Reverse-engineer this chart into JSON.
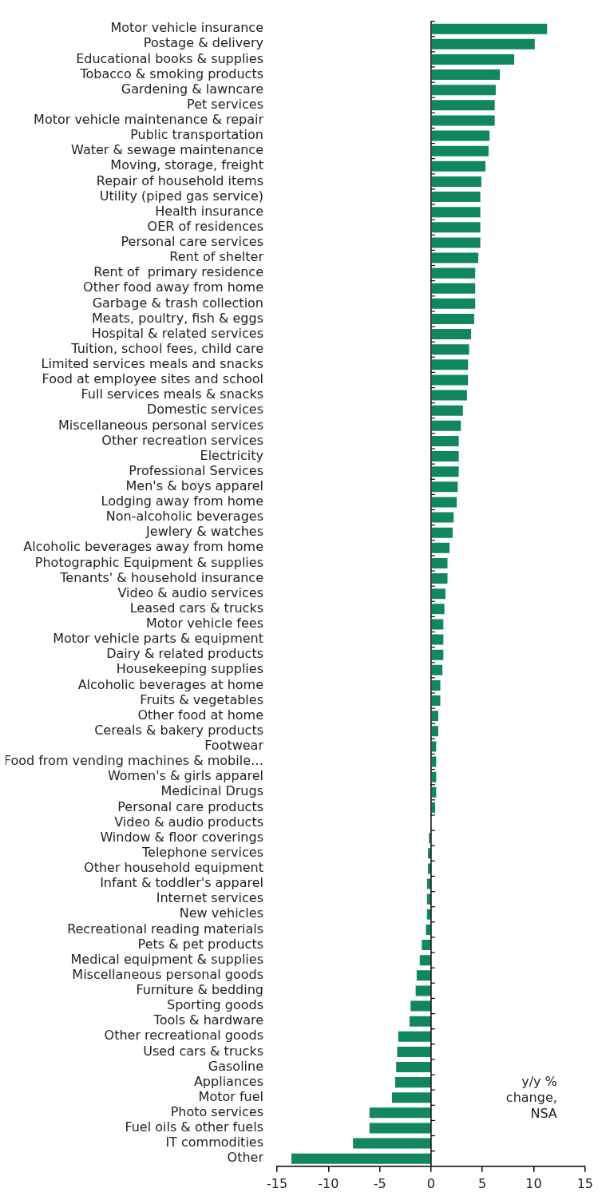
{
  "chart_data": {
    "type": "bar",
    "orientation": "horizontal",
    "color": "#10875c",
    "categories": [
      "Motor vehicle insurance",
      "Postage & delivery",
      "Educational books & supplies",
      "Tobacco & smoking products",
      "Gardening & lawncare",
      "Pet services",
      "Motor vehicle maintenance & repair",
      "Public transportation",
      "Water & sewage maintenance",
      "Moving, storage, freight",
      "Repair of household items",
      "Utility (piped gas service)",
      "Health insurance",
      "OER of residences",
      "Personal care services",
      "Rent of shelter",
      "Rent of  primary residence",
      "Other food away from home",
      "Garbage & trash collection",
      "Meats, poultry, fish & eggs",
      "Hospital & related services",
      "Tuition, school fees, child care",
      "Limited services meals and snacks",
      "Food at employee sites and school",
      "Full services meals & snacks",
      "Domestic services",
      "Miscellaneous personal services",
      "Other recreation services",
      "Electricity",
      "Professional Services",
      "Men's & boys apparel",
      "Lodging away from home",
      "Non-alcoholic beverages",
      "Jewlery & watches",
      "Alcoholic beverages away from home",
      "Photographic Equipment & supplies",
      "Tenants' & household insurance",
      "Video & audio services",
      "Leased cars & trucks",
      "Motor vehicle fees",
      "Motor vehicle parts & equipment",
      "Dairy & related products",
      "Housekeeping supplies",
      "Alcoholic beverages at home",
      "Fruits & vegetables",
      "Other food at home",
      "Cereals & bakery products",
      "Footwear",
      "Food from vending machines & mobile…",
      "Women's & girls apparel",
      "Medicinal Drugs",
      "Personal care products",
      "Video & audio products",
      "Window & floor coverings",
      "Telephone services",
      "Other household equipment",
      "Infant & toddler's apparel",
      "Internet services",
      "New vehicles",
      "Recreational reading materials",
      "Pets & pet products",
      "Medical equipment & supplies",
      "Miscellaneous personal goods",
      "Furniture & bedding",
      "Sporting goods",
      "Tools & hardware",
      "Other recreational goods",
      "Used cars & trucks",
      "Gasoline",
      "Appliances",
      "Motor fuel",
      "Photo services",
      "Fuel oils & other fuels",
      "IT commodities",
      "Other"
    ],
    "values": [
      11.3,
      10.1,
      8.1,
      6.7,
      6.3,
      6.2,
      6.2,
      5.7,
      5.6,
      5.3,
      4.9,
      4.8,
      4.8,
      4.8,
      4.8,
      4.6,
      4.3,
      4.3,
      4.3,
      4.2,
      3.9,
      3.7,
      3.6,
      3.6,
      3.5,
      3.1,
      2.9,
      2.7,
      2.7,
      2.7,
      2.6,
      2.5,
      2.2,
      2.1,
      1.8,
      1.6,
      1.6,
      1.4,
      1.3,
      1.2,
      1.2,
      1.2,
      1.1,
      0.9,
      0.9,
      0.7,
      0.7,
      0.5,
      0.5,
      0.5,
      0.5,
      0.4,
      0,
      -0.2,
      -0.3,
      -0.3,
      -0.4,
      -0.4,
      -0.4,
      -0.5,
      -0.9,
      -1.1,
      -1.4,
      -1.5,
      -2.0,
      -2.1,
      -3.2,
      -3.3,
      -3.4,
      -3.5,
      -3.8,
      -6.0,
      -6.0,
      -7.6,
      -13.6
    ],
    "ref_lines": [
      {
        "axis": "x",
        "value": 0,
        "color": "#000000"
      }
    ],
    "xlim": [
      -15,
      15
    ],
    "xticks": [
      -15,
      -10,
      -5,
      0,
      5,
      10,
      15
    ],
    "grid": false,
    "legend": false,
    "annotations": [
      "y/y % change, NSA"
    ]
  }
}
